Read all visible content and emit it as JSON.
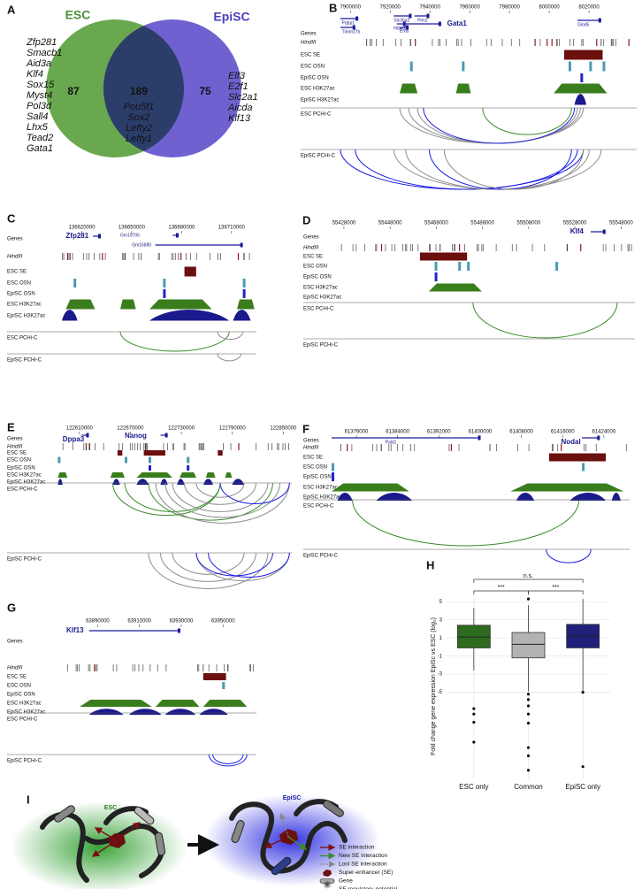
{
  "panel_labels": [
    "A",
    "B",
    "C",
    "D",
    "E",
    "F",
    "G",
    "H",
    "I"
  ],
  "venn": {
    "left_title": "ESC",
    "right_title": "EpiSC",
    "left_count": 87,
    "both_count": 189,
    "right_count": 75,
    "left_genes": [
      "Zfp281",
      "Smacb1",
      "Aid3a",
      "Klf4",
      "Sox15",
      "Myst4",
      "Pol3d",
      "Sall4",
      "Lhx5",
      "Tead2",
      "Gata1"
    ],
    "both_genes": [
      "Pou5f1",
      "Sox2",
      "Lefty2",
      "Lefty1"
    ],
    "right_genes": [
      "Elf3",
      "E2f1",
      "Slc2a1",
      "Aicda",
      "Klf13"
    ]
  },
  "track_labels": [
    "Genes",
    "HindIII",
    "ESC SE",
    "ESC OSN",
    "EpiSC OSN",
    "ESC H3K27ac",
    "EpiSC H3K27ac",
    "ESC PCHi-C",
    "EpiSC PCHi-C"
  ],
  "browsers": [
    {
      "xlim": [
        7895000,
        8044000
      ],
      "xticks": [
        7900000,
        7920000,
        7940000,
        7960000,
        7980000,
        8000000,
        8020000
      ],
      "genes": [
        "Pqbp1",
        "Timm17b",
        "Slc35a2",
        "Pim2",
        "Gata1",
        "Hdac6",
        "Eras",
        "Glod5"
      ]
    },
    {
      "xlim": [
        136608000,
        136725000
      ],
      "xticks": [
        136620000,
        136650000,
        136680000,
        136710000
      ],
      "genes": [
        "Zfp281",
        "Gm19705",
        "Gm16880"
      ]
    },
    {
      "xlim": [
        55426500,
        55554000
      ],
      "xticks": [
        55428000,
        55448000,
        55468000,
        55488000,
        55508000,
        55528000,
        55548000
      ],
      "genes": [
        "Klf4"
      ]
    },
    {
      "xlim": [
        122579000,
        122860000
      ],
      "xticks": [
        122610000,
        122670000,
        122730000,
        122790000,
        122850000
      ],
      "genes": [
        "Dppa3",
        "Nanog"
      ]
    },
    {
      "xlim": [
        61371200,
        61429000
      ],
      "xticks": [
        61376000,
        61384000,
        61392000,
        61400000,
        61408000,
        61416000,
        61424000
      ],
      "genes": [
        "Pald1",
        "Nodal"
      ]
    },
    {
      "xlim": [
        63875000,
        63966000
      ],
      "xticks": [
        63890000,
        63910000,
        63930000,
        63950000
      ],
      "genes": [
        "Klf13"
      ]
    }
  ],
  "chart_data": {
    "type": "box",
    "y_label": "Fold change gene expression EpiSc vs ESC (log₂)",
    "categories": [
      "ESC only",
      "Common",
      "EpiSC only"
    ],
    "colors": [
      "#2e6b1f",
      "#b3b3b3",
      "#20207a"
    ],
    "q1": [
      -0.1,
      -1.2,
      -0.1
    ],
    "median": [
      1.1,
      0.3,
      1.2
    ],
    "q3": [
      2.4,
      1.6,
      2.5
    ],
    "whisker_low": [
      -2.6,
      -4.9,
      -4.9
    ],
    "whisker_high": [
      4.3,
      4.6,
      5.3
    ],
    "outliers": [
      [
        -6.8,
        -7.4,
        -8.3,
        -10.5
      ],
      [
        5.3,
        -5.2,
        -5.8,
        -6.5,
        -7.4,
        -8.4,
        -11.1,
        -12,
        -13.6
      ],
      [
        -5,
        -13.2
      ]
    ],
    "ylim": [
      -14.5,
      5.8
    ],
    "yticks": [
      5,
      3,
      1,
      -1,
      -3,
      -5
    ],
    "grid": true,
    "significance": [
      "***",
      "***",
      "n.s."
    ]
  },
  "diagram": {
    "left_title": "ESC",
    "right_title": "EpiSC",
    "legend": [
      "SE interaction",
      "New SE interaction",
      "Lost SE interaction",
      "Super-enhancer (SE)",
      "Gene",
      "SE regulatory-potential"
    ]
  }
}
